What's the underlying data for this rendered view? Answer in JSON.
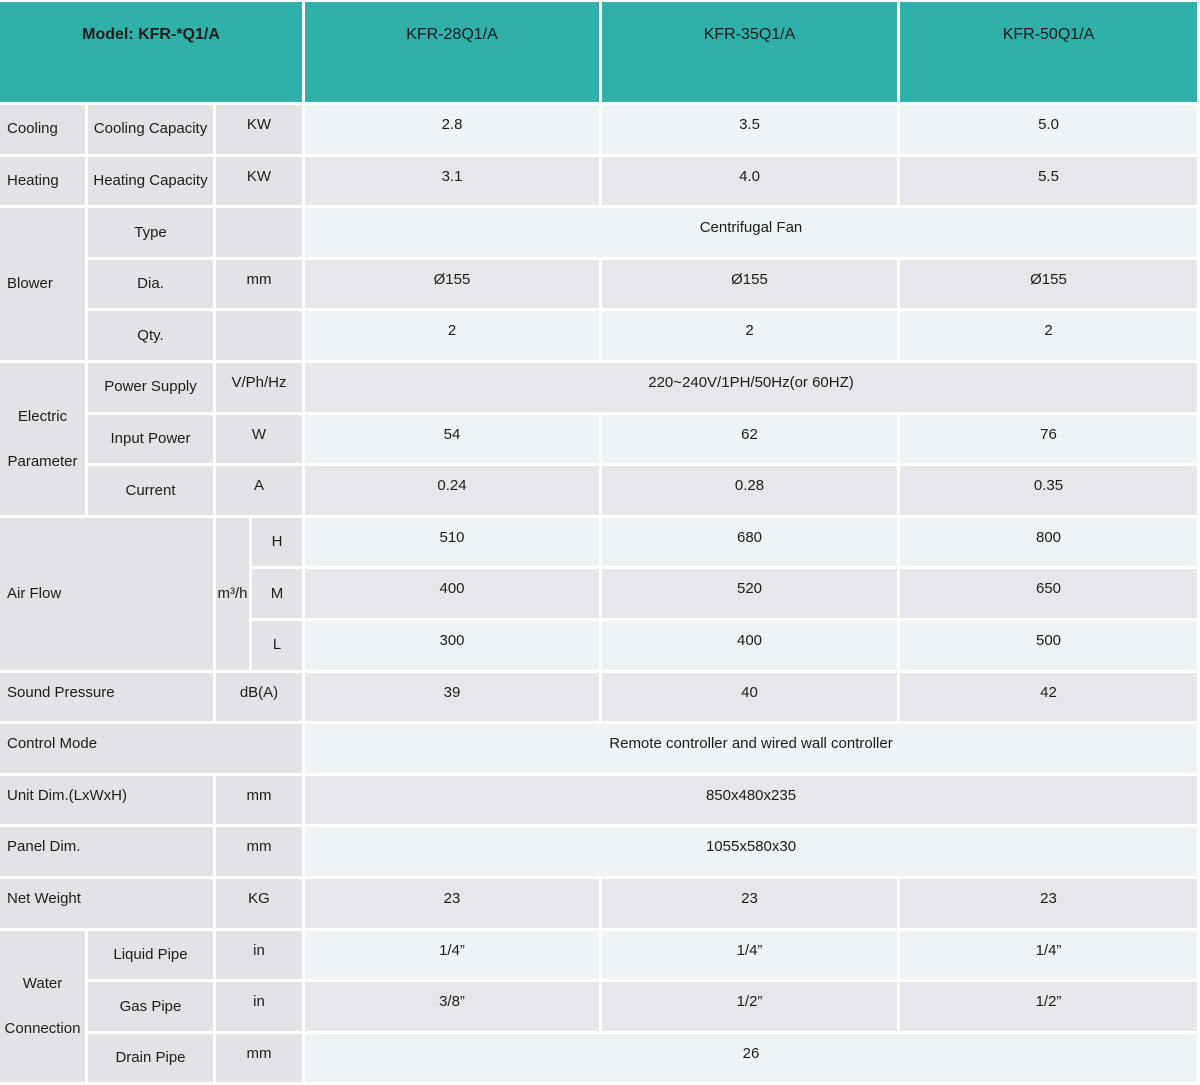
{
  "accent_color": "#2fb0a8",
  "label_bg_color": "#e3e3e7",
  "row_light_color": "#eef3f6",
  "row_dark_color": "#e5e7ea",
  "header": {
    "model_label": "Model: KFR-*Q1/A",
    "columns": [
      "KFR-28Q1/A",
      "KFR-35Q1/A",
      "KFR-50Q1/A"
    ]
  },
  "rows": {
    "cooling": {
      "category": "Cooling",
      "label": "Cooling Capacity",
      "unit": "KW",
      "values": [
        "2.8",
        "3.5",
        "5.0"
      ]
    },
    "heating": {
      "category": "Heating",
      "label": "Heating Capacity",
      "unit": "KW",
      "values": [
        "3.1",
        "4.0",
        "5.5"
      ]
    },
    "blower": {
      "category": "Blower",
      "type": {
        "label": "Type",
        "unit": "",
        "value": "Centrifugal Fan"
      },
      "dia": {
        "label": "Dia.",
        "unit": "mm",
        "values": [
          "Ø155",
          "Ø155",
          "Ø155"
        ]
      },
      "qty": {
        "label": "Qty.",
        "unit": "",
        "values": [
          "2",
          "2",
          "2"
        ]
      }
    },
    "electric": {
      "category": "Electric Parameter",
      "power_supply": {
        "label": "Power Supply",
        "unit": "V/Ph/Hz",
        "value": "220~240V/1PH/50Hz(or 60HZ)"
      },
      "input_power": {
        "label": "Input Power",
        "unit": "W",
        "values": [
          "54",
          "62",
          "76"
        ]
      },
      "current": {
        "label": "Current",
        "unit": "A",
        "values": [
          "0.24",
          "0.28",
          "0.35"
        ]
      }
    },
    "air_flow": {
      "category": "Air Flow",
      "unit": "m³/h",
      "high": {
        "label": "H",
        "values": [
          "510",
          "680",
          "800"
        ]
      },
      "medium": {
        "label": "M",
        "values": [
          "400",
          "520",
          "650"
        ]
      },
      "low": {
        "label": "L",
        "values": [
          "300",
          "400",
          "500"
        ]
      }
    },
    "sound_pressure": {
      "label": "Sound Pressure",
      "unit": "dB(A)",
      "values": [
        "39",
        "40",
        "42"
      ]
    },
    "control_mode": {
      "label": "Control Mode",
      "value": "Remote controller and wired wall controller"
    },
    "unit_dim": {
      "label": "Unit Dim.(LxWxH)",
      "unit": "mm",
      "value": "850x480x235"
    },
    "panel_dim": {
      "label": "Panel Dim.",
      "unit": "mm",
      "value": "1055x580x30"
    },
    "net_weight": {
      "label": "Net Weight",
      "unit": "KG",
      "values": [
        "23",
        "23",
        "23"
      ]
    },
    "water": {
      "category": "Water Connection",
      "liquid": {
        "label": "Liquid Pipe",
        "unit": "in",
        "values": [
          "1/4”",
          "1/4”",
          "1/4”"
        ]
      },
      "gas": {
        "label": "Gas Pipe",
        "unit": "in",
        "values": [
          "3/8”",
          "1/2”",
          "1/2”"
        ]
      },
      "drain": {
        "label": "Drain Pipe",
        "unit": "mm",
        "value": "26"
      }
    }
  }
}
